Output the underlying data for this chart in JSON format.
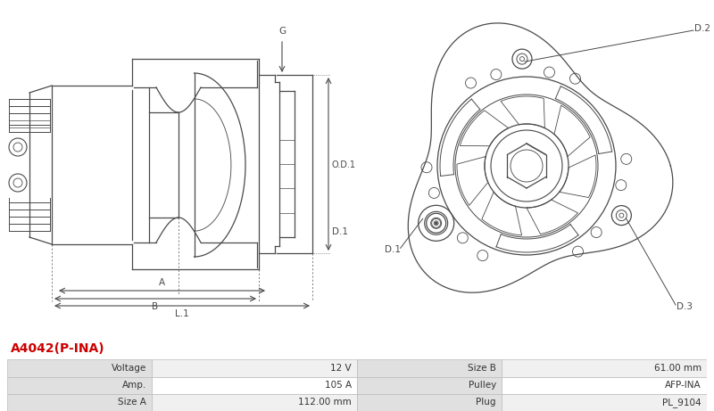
{
  "title": "A4042(P-INA)",
  "title_color": "#cc0000",
  "bg_color": "#ffffff",
  "table_data": [
    [
      "Voltage",
      "12 V",
      "Size B",
      "61.00 mm"
    ],
    [
      "Amp.",
      "105 A",
      "Pulley",
      "AFP-INA"
    ],
    [
      "Size A",
      "112.00 mm",
      "Plug",
      "PL_9104"
    ]
  ],
  "line_color": "#4a4a4a",
  "dim_color": "#4a4a4a"
}
